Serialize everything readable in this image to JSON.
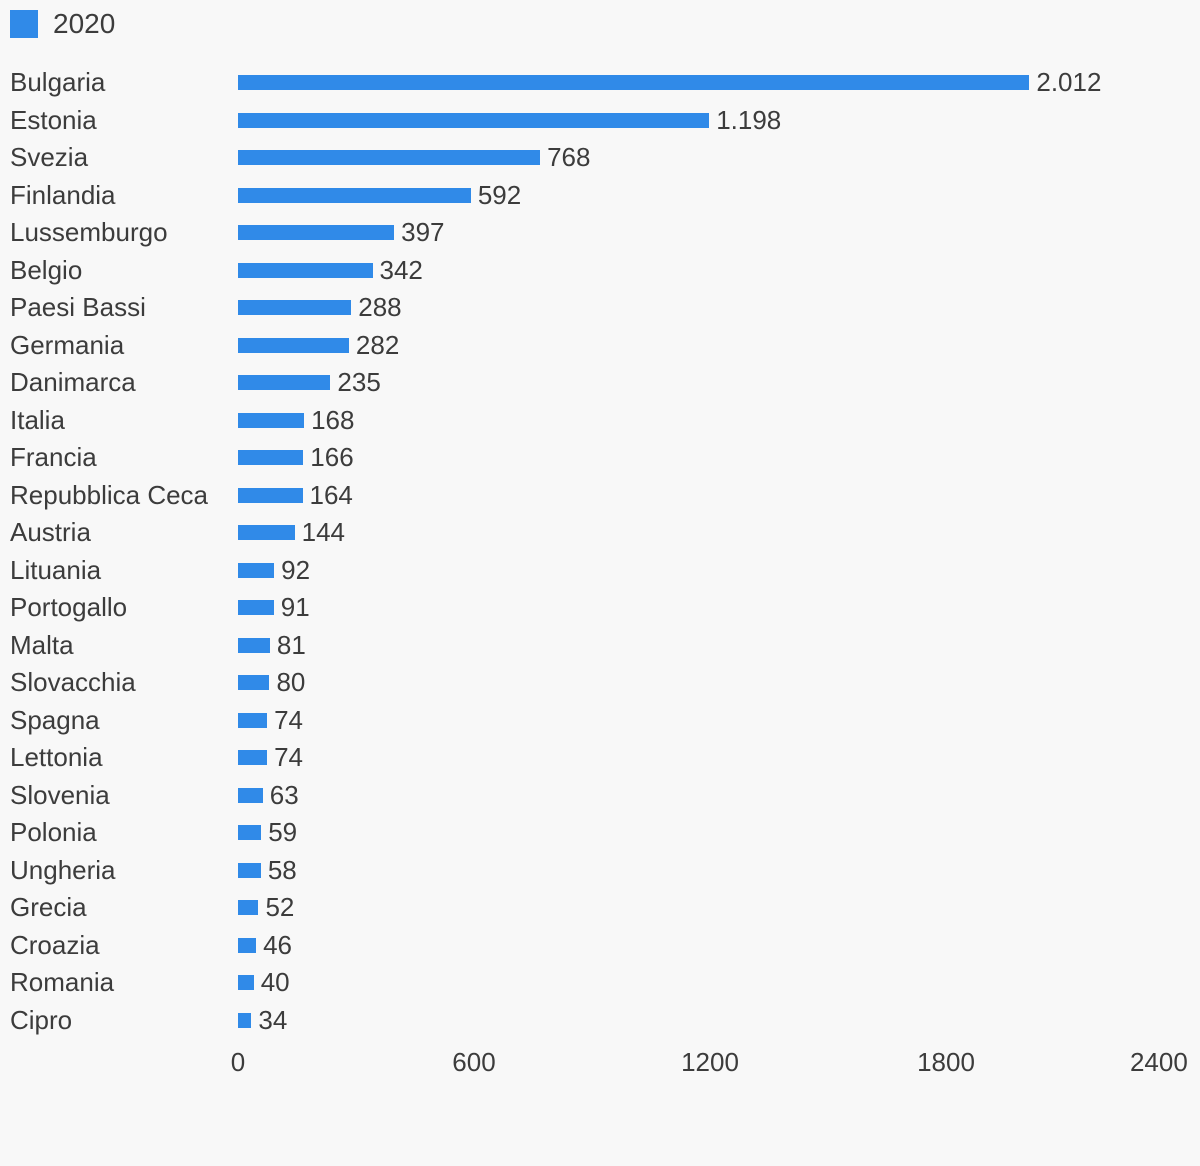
{
  "page": {
    "background_color": "#f8f8f8",
    "text_color": "#3c3c3c"
  },
  "legend": {
    "label": "2020",
    "swatch_color": "#308ae8"
  },
  "chart_data": {
    "type": "bar",
    "orientation": "horizontal",
    "title": "",
    "legend_entries": [
      "2020"
    ],
    "legend_position": "top-left",
    "grid": false,
    "categories": [
      "Bulgaria",
      "Estonia",
      "Svezia",
      "Finlandia",
      "Lussemburgo",
      "Belgio",
      "Paesi Bassi",
      "Germania",
      "Danimarca",
      "Italia",
      "Francia",
      "Repubblica Ceca",
      "Austria",
      "Lituania",
      "Portogallo",
      "Malta",
      "Slovacchia",
      "Spagna",
      "Lettonia",
      "Slovenia",
      "Polonia",
      "Ungheria",
      "Grecia",
      "Croazia",
      "Romania",
      "Cipro"
    ],
    "series": [
      {
        "name": "2020",
        "color": "#308ae8",
        "values": [
          2012,
          1198,
          768,
          592,
          397,
          342,
          288,
          282,
          235,
          168,
          166,
          164,
          144,
          92,
          91,
          81,
          80,
          74,
          74,
          63,
          59,
          58,
          52,
          46,
          40,
          34
        ],
        "value_labels": [
          "2.012",
          "1.198",
          "768",
          "592",
          "397",
          "342",
          "288",
          "282",
          "235",
          "168",
          "166",
          "164",
          "144",
          "92",
          "91",
          "81",
          "80",
          "74",
          "74",
          "63",
          "59",
          "58",
          "52",
          "46",
          "40",
          "34"
        ]
      }
    ],
    "xlabel": "",
    "ylabel": "",
    "xlim": [
      0,
      2400
    ],
    "x_ticks": [
      "0",
      "600",
      "1200",
      "1800",
      "2400"
    ]
  }
}
